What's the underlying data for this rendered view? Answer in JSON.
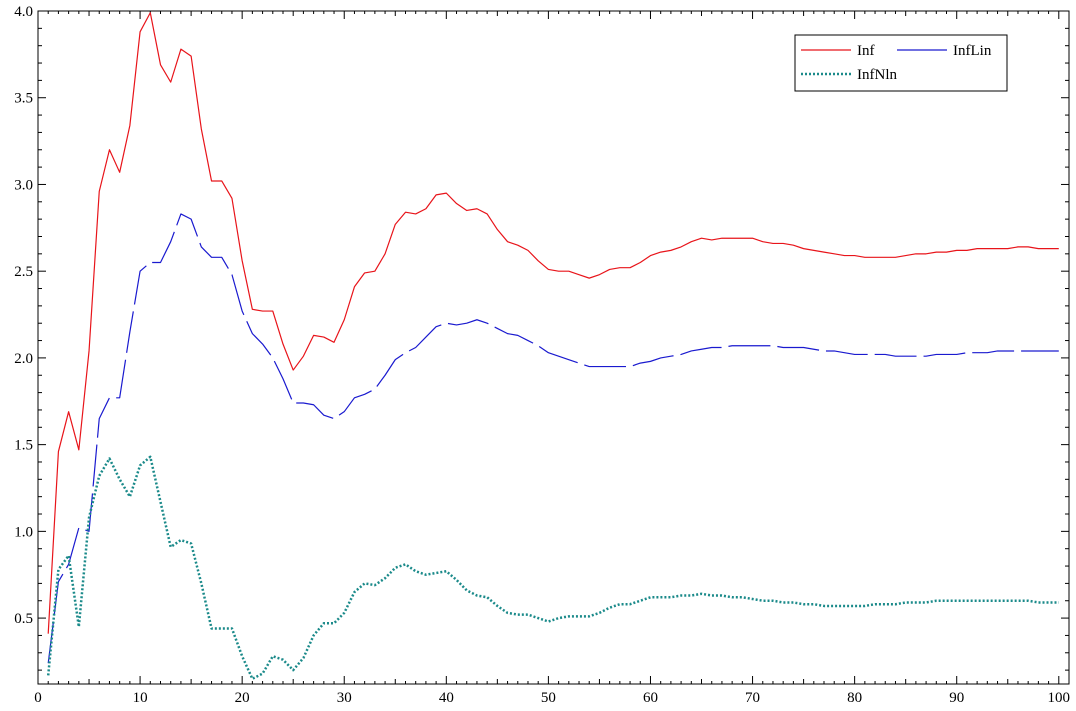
{
  "chart_data": {
    "type": "line",
    "title": "",
    "xlabel": "",
    "ylabel": "",
    "xlim": [
      0,
      101
    ],
    "ylim": [
      0.12,
      4.0
    ],
    "xticks": [
      0,
      10,
      20,
      30,
      40,
      50,
      60,
      70,
      80,
      90,
      100
    ],
    "yticks": [
      0.5,
      1.0,
      1.5,
      2.0,
      2.5,
      3.0,
      3.5,
      4.0
    ],
    "ytick_labels": [
      "0.5",
      "1.0",
      "1.5",
      "2.0",
      "2.5",
      "3.0",
      "3.5",
      "4.0"
    ],
    "grid": false,
    "legend_position": "top-right",
    "x": [
      1,
      2,
      3,
      4,
      5,
      6,
      7,
      8,
      9,
      10,
      11,
      12,
      13,
      14,
      15,
      16,
      17,
      18,
      19,
      20,
      21,
      22,
      23,
      24,
      25,
      26,
      27,
      28,
      29,
      30,
      31,
      32,
      33,
      34,
      35,
      36,
      37,
      38,
      39,
      40,
      41,
      42,
      43,
      44,
      45,
      46,
      47,
      48,
      49,
      50,
      51,
      52,
      53,
      54,
      55,
      56,
      57,
      58,
      59,
      60,
      61,
      62,
      63,
      64,
      65,
      66,
      67,
      68,
      69,
      70,
      71,
      72,
      73,
      74,
      75,
      76,
      77,
      78,
      79,
      80,
      81,
      82,
      83,
      84,
      85,
      86,
      87,
      88,
      89,
      90,
      91,
      92,
      93,
      94,
      95,
      96,
      97,
      98,
      99,
      100
    ],
    "series": [
      {
        "name": "Inf",
        "color": "#e8141a",
        "style": "solid",
        "values": [
          0.41,
          1.46,
          1.69,
          1.47,
          2.04,
          2.96,
          3.2,
          3.07,
          3.34,
          3.88,
          3.99,
          3.69,
          3.59,
          3.78,
          3.74,
          3.32,
          3.02,
          3.02,
          2.92,
          2.56,
          2.28,
          2.27,
          2.27,
          2.08,
          1.93,
          2.01,
          2.13,
          2.12,
          2.09,
          2.22,
          2.41,
          2.49,
          2.5,
          2.6,
          2.77,
          2.84,
          2.83,
          2.86,
          2.94,
          2.95,
          2.89,
          2.85,
          2.86,
          2.83,
          2.74,
          2.67,
          2.65,
          2.62,
          2.56,
          2.51,
          2.5,
          2.5,
          2.48,
          2.46,
          2.48,
          2.51,
          2.52,
          2.52,
          2.55,
          2.59,
          2.61,
          2.62,
          2.64,
          2.67,
          2.69,
          2.68,
          2.69,
          2.69,
          2.69,
          2.69,
          2.67,
          2.66,
          2.66,
          2.65,
          2.63,
          2.62,
          2.61,
          2.6,
          2.59,
          2.59,
          2.58,
          2.58,
          2.58,
          2.58,
          2.59,
          2.6,
          2.6,
          2.61,
          2.61,
          2.62,
          2.62,
          2.63,
          2.63,
          2.63,
          2.63,
          2.64,
          2.64,
          2.63,
          2.63,
          2.63
        ]
      },
      {
        "name": "InfLin",
        "color": "#1a1acf",
        "style": "dashed",
        "values": [
          0.24,
          0.71,
          0.81,
          1.02,
          1.0,
          1.65,
          1.77,
          1.77,
          2.15,
          2.5,
          2.55,
          2.55,
          2.67,
          2.83,
          2.8,
          2.64,
          2.58,
          2.58,
          2.48,
          2.27,
          2.14,
          2.08,
          2.0,
          1.88,
          1.74,
          1.74,
          1.73,
          1.67,
          1.65,
          1.69,
          1.77,
          1.79,
          1.82,
          1.9,
          1.99,
          2.03,
          2.06,
          2.12,
          2.18,
          2.2,
          2.19,
          2.2,
          2.22,
          2.2,
          2.17,
          2.14,
          2.13,
          2.1,
          2.07,
          2.03,
          2.01,
          1.99,
          1.97,
          1.95,
          1.95,
          1.95,
          1.95,
          1.95,
          1.97,
          1.98,
          2.0,
          2.01,
          2.02,
          2.04,
          2.05,
          2.06,
          2.06,
          2.07,
          2.07,
          2.07,
          2.07,
          2.07,
          2.06,
          2.06,
          2.06,
          2.05,
          2.04,
          2.04,
          2.03,
          2.02,
          2.02,
          2.02,
          2.02,
          2.01,
          2.01,
          2.01,
          2.01,
          2.02,
          2.02,
          2.02,
          2.03,
          2.03,
          2.03,
          2.04,
          2.04,
          2.04,
          2.04,
          2.04,
          2.04,
          2.04
        ]
      },
      {
        "name": "InfNln",
        "color": "#1b8a8a",
        "style": "dotted",
        "values": [
          0.17,
          0.78,
          0.86,
          0.45,
          1.08,
          1.32,
          1.42,
          1.3,
          1.2,
          1.38,
          1.43,
          1.17,
          0.91,
          0.95,
          0.93,
          0.7,
          0.44,
          0.44,
          0.44,
          0.28,
          0.15,
          0.18,
          0.28,
          0.26,
          0.2,
          0.27,
          0.4,
          0.47,
          0.47,
          0.53,
          0.65,
          0.7,
          0.69,
          0.73,
          0.79,
          0.81,
          0.77,
          0.75,
          0.76,
          0.77,
          0.72,
          0.66,
          0.63,
          0.62,
          0.57,
          0.53,
          0.52,
          0.52,
          0.5,
          0.48,
          0.5,
          0.51,
          0.51,
          0.51,
          0.53,
          0.56,
          0.58,
          0.58,
          0.6,
          0.62,
          0.62,
          0.62,
          0.63,
          0.63,
          0.64,
          0.63,
          0.63,
          0.62,
          0.62,
          0.61,
          0.6,
          0.6,
          0.59,
          0.59,
          0.58,
          0.58,
          0.57,
          0.57,
          0.57,
          0.57,
          0.57,
          0.58,
          0.58,
          0.58,
          0.59,
          0.59,
          0.59,
          0.6,
          0.6,
          0.6,
          0.6,
          0.6,
          0.6,
          0.6,
          0.6,
          0.6,
          0.6,
          0.59,
          0.59,
          0.59
        ]
      }
    ]
  }
}
